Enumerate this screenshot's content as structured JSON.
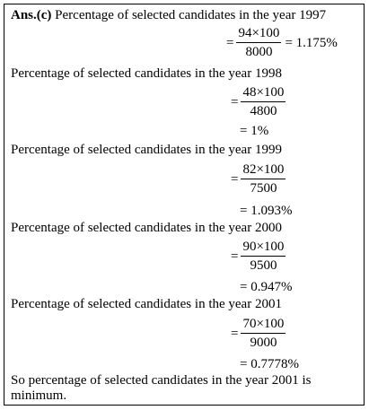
{
  "answer_label": "Ans.(c)",
  "intro": "Percentage  of selected candidates in the year 1997",
  "f1997": {
    "eq": "=",
    "num": "94×100",
    "den": "8000",
    "result": "= 1.175%"
  },
  "heading_1998": "Percentage of selected candidates in the year 1998",
  "f1998": {
    "eq": "=",
    "num": "48×100",
    "den": "4800",
    "result": "= 1%"
  },
  "heading_1999": "Percentage of selected candidates in the year 1999",
  "f1999": {
    "eq": "=",
    "num": "82×100",
    "den": "7500",
    "result": "= 1.093%"
  },
  "heading_2000": "Percentage of selected candidates in the year 2000",
  "f2000": {
    "eq": "=",
    "num": "90×100",
    "den": "9500",
    "result": "= 0.947%"
  },
  "heading_2001": "Percentage of selected candidates in the year 2001",
  "f2001": {
    "eq": "=",
    "num": "70×100",
    "den": "9000",
    "result": "= 0.7778%"
  },
  "conclusion_line1": "So percentage of selected candidates in the year 2001 is",
  "conclusion_line2": "minimum."
}
